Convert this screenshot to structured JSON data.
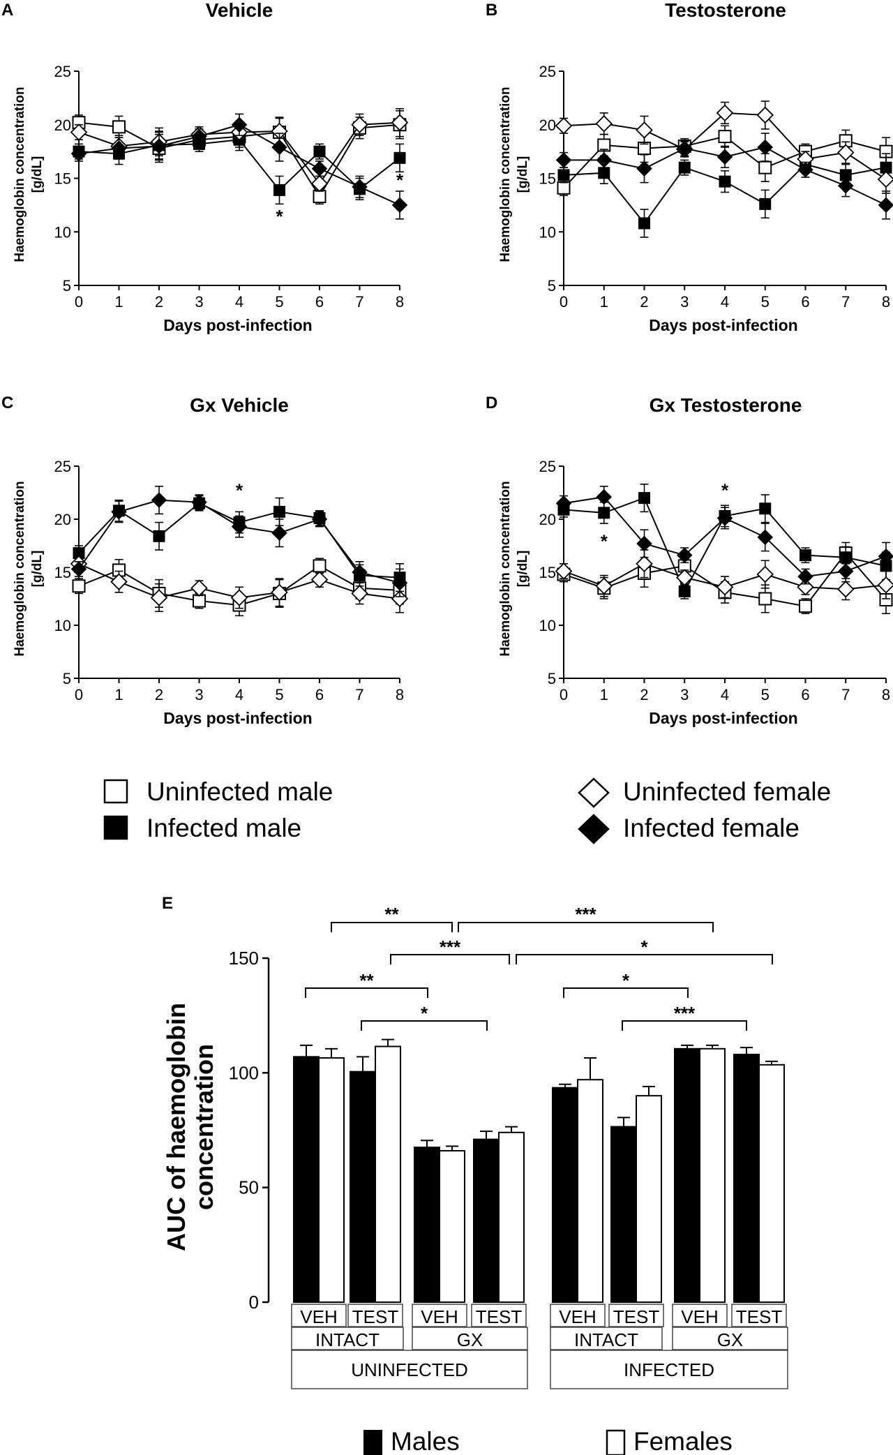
{
  "line_days": [
    0,
    1,
    2,
    3,
    4,
    5,
    6,
    7,
    8
  ],
  "line_axis": {
    "ylabel": "Haemoglobin concentration [g/dL]",
    "xlabel": "Days post-infection",
    "yticks": [
      5,
      10,
      15,
      20,
      25
    ],
    "ylim": [
      5,
      25
    ]
  },
  "legend": {
    "uninfected_male": "Uninfected male",
    "infected_male": "Infected male",
    "uninfected_female": "Uninfected female",
    "infected_female": "Infected female"
  },
  "chart_data": [
    {
      "type": "line",
      "letter": "A",
      "title": "Vehicle",
      "xlabel": "Days post-infection",
      "ylabel": "Haemoglobin concentration [g/dL]",
      "ylim": [
        5,
        25
      ],
      "x": [
        0,
        1,
        2,
        3,
        4,
        5,
        6,
        7,
        8
      ],
      "series": [
        {
          "name": "Uninfected male",
          "values": [
            20.2,
            19.8,
            17.8,
            18.6,
            18.9,
            19.3,
            13.3,
            19.7,
            20.0
          ]
        },
        {
          "name": "Infected male",
          "values": [
            17.5,
            17.3,
            18.1,
            18.2,
            18.6,
            13.9,
            17.5,
            14.0,
            16.9
          ]
        },
        {
          "name": "Uninfected female",
          "values": [
            19.3,
            18.0,
            18.4,
            19.1,
            19.3,
            19.4,
            14.5,
            20.0,
            20.2
          ]
        },
        {
          "name": "Infected female",
          "values": [
            17.3,
            17.8,
            18.0,
            18.9,
            20.0,
            17.9,
            15.9,
            14.2,
            12.5
          ]
        }
      ],
      "annotations": [
        {
          "x": 5,
          "y": 11.5,
          "text": "*"
        },
        {
          "x": 8,
          "y": 14.9,
          "text": "*"
        }
      ]
    },
    {
      "type": "line",
      "letter": "B",
      "title": "Testosterone",
      "xlabel": "Days post-infection",
      "ylabel": "Haemoglobin concentration [g/dL]",
      "ylim": [
        5,
        25
      ],
      "x": [
        0,
        1,
        2,
        3,
        4,
        5,
        6,
        7,
        8
      ],
      "series": [
        {
          "name": "Uninfected male",
          "values": [
            14.1,
            18.1,
            17.8,
            18.0,
            18.9,
            16.0,
            17.5,
            18.5,
            17.5
          ]
        },
        {
          "name": "Infected male",
          "values": [
            15.3,
            15.5,
            10.8,
            16.0,
            14.7,
            12.6,
            16.3,
            15.3,
            16.0
          ]
        },
        {
          "name": "Uninfected female",
          "values": [
            19.9,
            20.1,
            19.5,
            17.7,
            21.1,
            20.9,
            16.8,
            17.4,
            14.9
          ]
        },
        {
          "name": "Infected female",
          "values": [
            16.7,
            16.7,
            15.9,
            17.8,
            17.0,
            17.9,
            15.8,
            14.3,
            12.5
          ]
        }
      ],
      "annotations": []
    },
    {
      "type": "line",
      "letter": "C",
      "title": "Gx Vehicle",
      "xlabel": "Days post-infection",
      "ylabel": "Haemoglobin concentration [g/dL]",
      "ylim": [
        5,
        25
      ],
      "x": [
        0,
        1,
        2,
        3,
        4,
        5,
        6,
        7,
        8
      ],
      "series": [
        {
          "name": "Uninfected male",
          "values": [
            13.7,
            15.2,
            13.0,
            12.3,
            11.9,
            13.0,
            15.6,
            13.5,
            13.3
          ]
        },
        {
          "name": "Infected male",
          "values": [
            16.8,
            20.8,
            18.4,
            21.5,
            19.7,
            20.7,
            20.1,
            14.7,
            14.5
          ]
        },
        {
          "name": "Uninfected female",
          "values": [
            15.8,
            14.1,
            12.6,
            13.5,
            12.6,
            13.1,
            14.3,
            13.0,
            12.5
          ]
        },
        {
          "name": "Infected female",
          "values": [
            15.3,
            20.7,
            21.8,
            21.6,
            19.3,
            18.7,
            20.0,
            15.0,
            14.0
          ]
        }
      ],
      "annotations": [
        {
          "x": 4,
          "y": 22.8,
          "text": "*"
        }
      ]
    },
    {
      "type": "line",
      "letter": "D",
      "title": "Gx Testosterone",
      "xlabel": "Days post-infection",
      "ylabel": "Haemoglobin concentration [g/dL]",
      "ylim": [
        5,
        25
      ],
      "x": [
        0,
        1,
        2,
        3,
        4,
        5,
        6,
        7,
        8
      ],
      "series": [
        {
          "name": "Uninfected male",
          "values": [
            14.8,
            13.5,
            14.9,
            15.6,
            13.1,
            12.5,
            11.8,
            16.8,
            12.4
          ]
        },
        {
          "name": "Infected male",
          "values": [
            20.9,
            20.6,
            22.0,
            13.2,
            20.3,
            21.0,
            16.6,
            16.4,
            15.6
          ]
        },
        {
          "name": "Uninfected female",
          "values": [
            15.1,
            13.7,
            15.8,
            14.5,
            13.6,
            14.8,
            13.6,
            13.4,
            13.8
          ]
        },
        {
          "name": "Infected female",
          "values": [
            21.5,
            22.1,
            17.7,
            16.6,
            20.1,
            18.3,
            14.6,
            15.1,
            16.5
          ]
        }
      ],
      "annotations": [
        {
          "x": 1,
          "y": 18.0,
          "text": "*"
        },
        {
          "x": 4,
          "y": 22.8,
          "text": "*"
        }
      ]
    },
    {
      "type": "bar",
      "letter": "E",
      "ylabel": "AUC of haemoglobin concentration",
      "ylim": [
        0,
        150
      ],
      "yticks": [
        0,
        50,
        100,
        150
      ],
      "legend": [
        "Males",
        "Females"
      ],
      "groups": [
        {
          "infection": "UNINFECTED",
          "status": "INTACT",
          "treatment": "VEH",
          "males": 107,
          "males_err": 5,
          "females": 106.5,
          "females_err": 4
        },
        {
          "infection": "UNINFECTED",
          "status": "INTACT",
          "treatment": "TEST",
          "males": 100.5,
          "males_err": 6.5,
          "females": 111.5,
          "females_err": 3
        },
        {
          "infection": "UNINFECTED",
          "status": "GX",
          "treatment": "VEH",
          "males": 67.5,
          "males_err": 3,
          "females": 66,
          "females_err": 2
        },
        {
          "infection": "UNINFECTED",
          "status": "GX",
          "treatment": "TEST",
          "males": 71,
          "males_err": 3.5,
          "females": 74,
          "females_err": 2.5
        },
        {
          "infection": "INFECTED",
          "status": "INTACT",
          "treatment": "VEH",
          "males": 93.5,
          "males_err": 1.5,
          "females": 97,
          "females_err": 9.5
        },
        {
          "infection": "INFECTED",
          "status": "INTACT",
          "treatment": "TEST",
          "males": 76.5,
          "males_err": 4,
          "females": 90,
          "females_err": 4
        },
        {
          "infection": "INFECTED",
          "status": "GX",
          "treatment": "VEH",
          "males": 110.5,
          "males_err": 1.5,
          "females": 110.5,
          "females_err": 1.5
        },
        {
          "infection": "INFECTED",
          "status": "GX",
          "treatment": "TEST",
          "males": 108,
          "males_err": 3,
          "females": 103.5,
          "females_err": 1.5
        }
      ],
      "significance": [
        {
          "text": "**"
        },
        {
          "text": "***"
        },
        {
          "text": "***"
        },
        {
          "text": "*"
        },
        {
          "text": "**"
        },
        {
          "text": "*"
        },
        {
          "text": "*"
        },
        {
          "text": "***"
        }
      ],
      "row_labels": {
        "treatments": [
          "VEH",
          "TEST",
          "VEH",
          "TEST",
          "VEH",
          "TEST",
          "VEH",
          "TEST"
        ],
        "status": [
          "INTACT",
          "GX",
          "INTACT",
          "GX"
        ],
        "infection": [
          "UNINFECTED",
          "INFECTED"
        ]
      }
    }
  ]
}
